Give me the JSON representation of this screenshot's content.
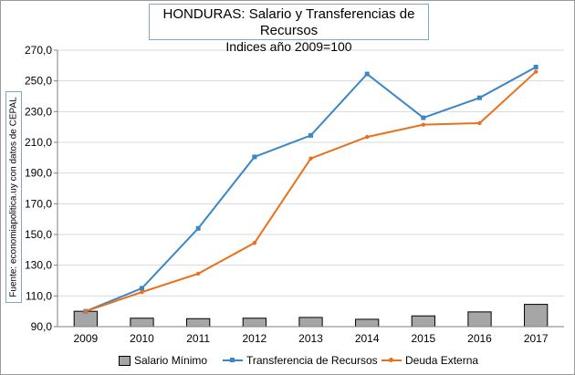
{
  "title": {
    "line1": "HONDURAS:  Salario y Transferencias de Recursos",
    "line2": "Indices año 2009=100"
  },
  "source_note": "Fuente: economiapolitica.uy con datos de CEPAL",
  "colors": {
    "bar_fill": "#a6a6a6",
    "bar_border": "#000000",
    "transferencia": "#3a86c8",
    "deuda": "#e8711d",
    "grid": "#d9d9d9"
  },
  "chart_data": {
    "type": "bar",
    "categories": [
      "2009",
      "2010",
      "2011",
      "2012",
      "2013",
      "2014",
      "2015",
      "2016",
      "2017"
    ],
    "ylim": [
      90,
      270
    ],
    "yticks": [
      "90,0",
      "110,0",
      "130,0",
      "150,0",
      "170,0",
      "190,0",
      "210,0",
      "230,0",
      "250,0",
      "270,0"
    ],
    "ytick_values": [
      90,
      110,
      130,
      150,
      170,
      190,
      210,
      230,
      250,
      270
    ],
    "series": [
      {
        "name": "Salario Mínimo",
        "kind": "bar",
        "values": [
          100,
          95.5,
          95.2,
          95.5,
          96,
          94.8,
          97,
          99.6,
          104.5
        ]
      },
      {
        "name": "Transferencia de Recursos",
        "kind": "line",
        "values": [
          100,
          115,
          154,
          200.5,
          214.5,
          254.5,
          226,
          239,
          259
        ]
      },
      {
        "name": "Deuda Externa",
        "kind": "line",
        "values": [
          100,
          112.5,
          124.5,
          144.5,
          199.5,
          213.5,
          221.5,
          222.5,
          256
        ]
      }
    ],
    "grid": "horizontal",
    "legend": "bottom"
  }
}
